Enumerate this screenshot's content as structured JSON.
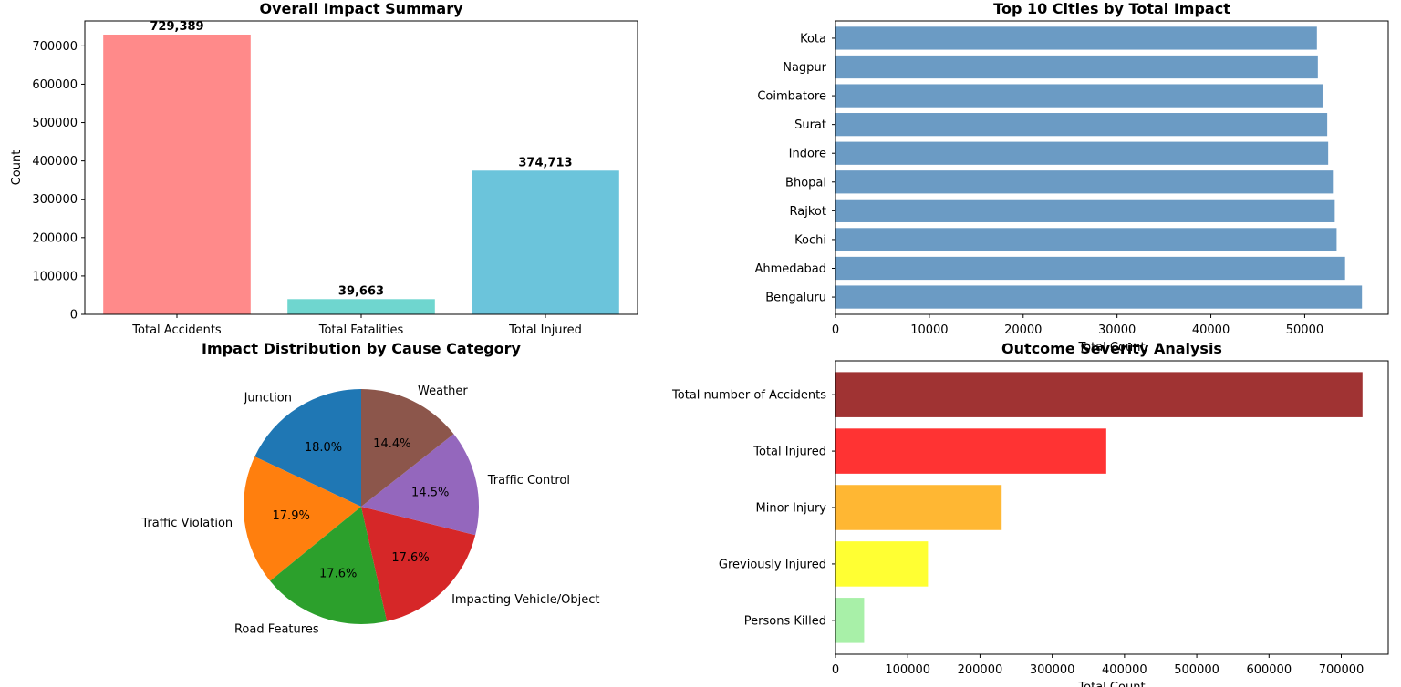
{
  "chart_data": [
    {
      "type": "bar",
      "title": "Overall Impact Summary",
      "xlabel": "",
      "ylabel": "Count",
      "categories": [
        "Total Accidents",
        "Total Fatalities",
        "Total Injured"
      ],
      "values": [
        729389,
        39663,
        374713
      ],
      "value_labels": [
        "729,389",
        "39,663",
        "374,713"
      ],
      "colors": [
        "#ff8a8a",
        "#6fd6cf",
        "#6bc4db"
      ],
      "ylim": [
        0,
        765000
      ],
      "yticks": [
        0,
        100000,
        200000,
        300000,
        400000,
        500000,
        600000,
        700000
      ],
      "grid": false
    },
    {
      "type": "bar",
      "orientation": "horizontal",
      "title": "Top 10 Cities by Total Impact",
      "xlabel": "Total Count",
      "ylabel": "",
      "categories": [
        "Bengaluru",
        "Ahmedabad",
        "Kochi",
        "Rajkot",
        "Bhopal",
        "Indore",
        "Surat",
        "Coimbatore",
        "Nagpur",
        "Kota"
      ],
      "values": [
        56100,
        54300,
        53400,
        53200,
        53000,
        52500,
        52400,
        51900,
        51400,
        51300
      ],
      "color": "#6b9bc4",
      "xlim": [
        0,
        58900
      ],
      "xticks": [
        0,
        10000,
        20000,
        30000,
        40000,
        50000
      ],
      "grid": false
    },
    {
      "type": "pie",
      "title": "Impact Distribution by Cause Category",
      "labels": [
        "Junction",
        "Traffic Violation",
        "Road Features",
        "Impacting Vehicle/Object",
        "Traffic Control",
        "Weather"
      ],
      "values": [
        18.0,
        17.9,
        17.6,
        17.6,
        14.5,
        14.4
      ],
      "pct_labels": [
        "18.0%",
        "17.9%",
        "17.6%",
        "17.6%",
        "14.5%",
        "14.4%"
      ],
      "colors": [
        "#1f77b4",
        "#ff7f0e",
        "#2ca02c",
        "#d62728",
        "#9467bd",
        "#8c564b"
      ],
      "startangle": 90,
      "direction": "counterclockwise"
    },
    {
      "type": "bar",
      "orientation": "horizontal",
      "title": "Outcome Severity Analysis",
      "xlabel": "Total Count",
      "ylabel": "",
      "categories": [
        "Persons Killed",
        "Greviously Injured",
        "Minor Injury",
        "Total Injured",
        "Total number of Accidents"
      ],
      "values": [
        39663,
        128000,
        230000,
        374713,
        729389
      ],
      "colors": [
        "#a8f0a8",
        "#ffff33",
        "#ffb733",
        "#ff3333",
        "#a03333"
      ],
      "xlim": [
        0,
        765000
      ],
      "xticks": [
        0,
        100000,
        200000,
        300000,
        400000,
        500000,
        600000,
        700000
      ],
      "grid": false
    }
  ]
}
